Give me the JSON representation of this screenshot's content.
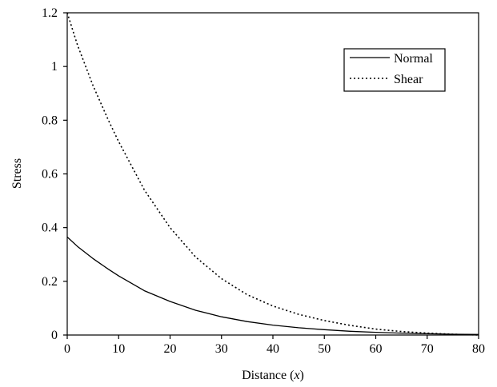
{
  "chart_data": {
    "type": "line",
    "xlabel_prefix": "Distance (",
    "xlabel_var": "x",
    "xlabel_suffix": ")",
    "ylabel": "Stress",
    "xlim": [
      0,
      80
    ],
    "ylim": [
      0,
      1.2
    ],
    "xticks": [
      0,
      10,
      20,
      30,
      40,
      50,
      60,
      70,
      80
    ],
    "yticks": [
      0,
      0.2,
      0.4,
      0.6,
      0.8,
      1,
      1.2
    ],
    "grid": false,
    "legend_position": "top-right",
    "series": [
      {
        "name": "Normal",
        "style": "solid",
        "x": [
          0,
          2,
          5,
          8,
          10,
          15,
          20,
          25,
          30,
          35,
          40,
          45,
          50,
          55,
          60,
          65,
          70,
          75,
          80
        ],
        "y": [
          0.365,
          0.33,
          0.285,
          0.245,
          0.22,
          0.165,
          0.125,
          0.092,
          0.068,
          0.05,
          0.037,
          0.027,
          0.02,
          0.014,
          0.01,
          0.007,
          0.005,
          0.003,
          0.002
        ]
      },
      {
        "name": "Shear",
        "style": "dotted",
        "x": [
          0,
          2,
          5,
          8,
          10,
          15,
          20,
          25,
          30,
          35,
          40,
          45,
          50,
          55,
          60,
          65,
          70,
          75,
          80
        ],
        "y": [
          1.2,
          1.08,
          0.93,
          0.8,
          0.72,
          0.54,
          0.4,
          0.29,
          0.21,
          0.15,
          0.108,
          0.077,
          0.054,
          0.036,
          0.022,
          0.013,
          0.007,
          0.003,
          0.0
        ]
      }
    ]
  }
}
